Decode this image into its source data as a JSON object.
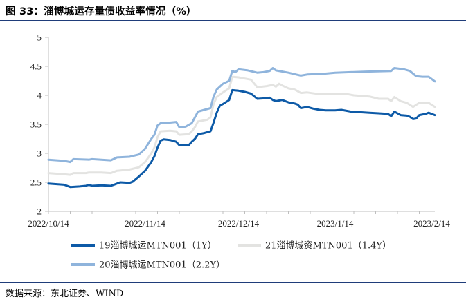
{
  "header": {
    "title": "图 33：淄博城运存量债收益率情况（%）"
  },
  "footer": {
    "source": "数据来源：东北证券、WIND"
  },
  "colors": {
    "series1": "#0d5aa7",
    "series2": "#e3e3e1",
    "series3": "#8fb4dc",
    "rule": "#1f3d7a",
    "axis": "#bfbfbf"
  },
  "chart_data": {
    "type": "line",
    "title": "",
    "xlabel": "",
    "ylabel": "",
    "ylim": [
      2,
      5
    ],
    "yticks": [
      "2",
      "2.5",
      "3",
      "3.5",
      "4",
      "4.5",
      "5"
    ],
    "xlim": [
      "2022-10-14",
      "2023-02-15"
    ],
    "xticks": [
      {
        "label": "2022/10/14",
        "date": "2022-10-14"
      },
      {
        "label": "2022/11/14",
        "date": "2022-11-14"
      },
      {
        "label": "2022/12/14",
        "date": "2022-12-14"
      },
      {
        "label": "2023/1/14",
        "date": "2023-01-14"
      },
      {
        "label": "2023/2/14",
        "date": "2023-02-14"
      }
    ],
    "grid": false,
    "legend": "bottom",
    "series": [
      {
        "name": "19淄博城运MTN001（1Y）",
        "color": "#0d5aa7",
        "points": [
          [
            "2022-10-14",
            2.48
          ],
          [
            "2022-10-19",
            2.46
          ],
          [
            "2022-10-21",
            2.42
          ],
          [
            "2022-10-24",
            2.43
          ],
          [
            "2022-10-26",
            2.44
          ],
          [
            "2022-10-27",
            2.46
          ],
          [
            "2022-10-28",
            2.44
          ],
          [
            "2022-10-31",
            2.45
          ],
          [
            "2022-11-03",
            2.44
          ],
          [
            "2022-11-04",
            2.46
          ],
          [
            "2022-11-06",
            2.5
          ],
          [
            "2022-11-09",
            2.49
          ],
          [
            "2022-11-10",
            2.51
          ],
          [
            "2022-11-12",
            2.6
          ],
          [
            "2022-11-14",
            2.7
          ],
          [
            "2022-11-16",
            2.85
          ],
          [
            "2022-11-17",
            2.95
          ],
          [
            "2022-11-18",
            3.1
          ],
          [
            "2022-11-19",
            3.22
          ],
          [
            "2022-11-20",
            3.24
          ],
          [
            "2022-11-22",
            3.23
          ],
          [
            "2022-11-24",
            3.2
          ],
          [
            "2022-11-25",
            3.14
          ],
          [
            "2022-11-28",
            3.14
          ],
          [
            "2022-11-29",
            3.2
          ],
          [
            "2022-11-30",
            3.25
          ],
          [
            "2022-12-01",
            3.33
          ],
          [
            "2022-12-03",
            3.35
          ],
          [
            "2022-12-05",
            3.38
          ],
          [
            "2022-12-06",
            3.53
          ],
          [
            "2022-12-07",
            3.7
          ],
          [
            "2022-12-08",
            3.82
          ],
          [
            "2022-12-09",
            3.85
          ],
          [
            "2022-12-11",
            3.92
          ],
          [
            "2022-12-12",
            4.09
          ],
          [
            "2022-12-14",
            4.08
          ],
          [
            "2022-12-16",
            4.06
          ],
          [
            "2022-12-18",
            4.03
          ],
          [
            "2022-12-20",
            3.94
          ],
          [
            "2022-12-23",
            3.95
          ],
          [
            "2022-12-24",
            3.96
          ],
          [
            "2022-12-25",
            3.92
          ],
          [
            "2022-12-26",
            3.9
          ],
          [
            "2022-12-28",
            3.92
          ],
          [
            "2022-12-30",
            3.88
          ],
          [
            "2023-01-01",
            3.86
          ],
          [
            "2023-01-02",
            3.84
          ],
          [
            "2023-01-03",
            3.78
          ],
          [
            "2023-01-05",
            3.8
          ],
          [
            "2023-01-07",
            3.77
          ],
          [
            "2023-01-09",
            3.75
          ],
          [
            "2023-01-11",
            3.74
          ],
          [
            "2023-01-14",
            3.74
          ],
          [
            "2023-01-16",
            3.75
          ],
          [
            "2023-01-19",
            3.72
          ],
          [
            "2023-01-22",
            3.71
          ],
          [
            "2023-01-25",
            3.7
          ],
          [
            "2023-01-28",
            3.69
          ],
          [
            "2023-01-31",
            3.68
          ],
          [
            "2023-02-01",
            3.64
          ],
          [
            "2023-02-02",
            3.72
          ],
          [
            "2023-02-04",
            3.66
          ],
          [
            "2023-02-06",
            3.65
          ],
          [
            "2023-02-07",
            3.63
          ],
          [
            "2023-02-08",
            3.59
          ],
          [
            "2023-02-09",
            3.6
          ],
          [
            "2023-02-10",
            3.66
          ],
          [
            "2023-02-12",
            3.68
          ],
          [
            "2023-02-13",
            3.7
          ],
          [
            "2023-02-15",
            3.66
          ]
        ]
      },
      {
        "name": "21淄博城资MTN001（1.4Y）",
        "color": "#e3e3e1",
        "points": [
          [
            "2022-10-14",
            2.66
          ],
          [
            "2022-10-19",
            2.64
          ],
          [
            "2022-10-21",
            2.63
          ],
          [
            "2022-10-22",
            2.66
          ],
          [
            "2022-10-26",
            2.66
          ],
          [
            "2022-10-27",
            2.67
          ],
          [
            "2022-10-31",
            2.67
          ],
          [
            "2022-11-03",
            2.66
          ],
          [
            "2022-11-05",
            2.7
          ],
          [
            "2022-11-09",
            2.72
          ],
          [
            "2022-11-12",
            2.76
          ],
          [
            "2022-11-14",
            2.85
          ],
          [
            "2022-11-16",
            3.0
          ],
          [
            "2022-11-17",
            3.1
          ],
          [
            "2022-11-18",
            3.28
          ],
          [
            "2022-11-19",
            3.38
          ],
          [
            "2022-11-22",
            3.39
          ],
          [
            "2022-11-24",
            3.38
          ],
          [
            "2022-11-25",
            3.32
          ],
          [
            "2022-11-28",
            3.33
          ],
          [
            "2022-11-29",
            3.38
          ],
          [
            "2022-11-30",
            3.45
          ],
          [
            "2022-12-01",
            3.55
          ],
          [
            "2022-12-04",
            3.58
          ],
          [
            "2022-12-05",
            3.62
          ],
          [
            "2022-12-06",
            3.85
          ],
          [
            "2022-12-07",
            3.97
          ],
          [
            "2022-12-09",
            4.05
          ],
          [
            "2022-12-11",
            4.12
          ],
          [
            "2022-12-12",
            4.32
          ],
          [
            "2022-12-14",
            4.31
          ],
          [
            "2022-12-18",
            4.27
          ],
          [
            "2022-12-20",
            4.14
          ],
          [
            "2022-12-23",
            4.16
          ],
          [
            "2022-12-25",
            4.18
          ],
          [
            "2022-12-26",
            4.15
          ],
          [
            "2022-12-27",
            4.2
          ],
          [
            "2022-12-28",
            4.17
          ],
          [
            "2022-12-30",
            4.12
          ],
          [
            "2023-01-01",
            4.1
          ],
          [
            "2023-01-03",
            4.04
          ],
          [
            "2023-01-05",
            4.05
          ],
          [
            "2023-01-09",
            4.02
          ],
          [
            "2023-01-14",
            4.02
          ],
          [
            "2023-01-18",
            4.02
          ],
          [
            "2023-01-20",
            4.0
          ],
          [
            "2023-01-25",
            3.98
          ],
          [
            "2023-01-28",
            3.94
          ],
          [
            "2023-01-31",
            3.94
          ],
          [
            "2023-02-01",
            3.9
          ],
          [
            "2023-02-02",
            3.97
          ],
          [
            "2023-02-04",
            3.9
          ],
          [
            "2023-02-06",
            3.87
          ],
          [
            "2023-02-08",
            3.8
          ],
          [
            "2023-02-10",
            3.87
          ],
          [
            "2023-02-13",
            3.87
          ],
          [
            "2023-02-15",
            3.8
          ]
        ]
      },
      {
        "name": "20淄博城运MTN001（2.2Y）",
        "color": "#8fb4dc",
        "points": [
          [
            "2022-10-14",
            2.89
          ],
          [
            "2022-10-19",
            2.87
          ],
          [
            "2022-10-21",
            2.85
          ],
          [
            "2022-10-22",
            2.9
          ],
          [
            "2022-10-27",
            2.89
          ],
          [
            "2022-10-28",
            2.9
          ],
          [
            "2022-10-31",
            2.89
          ],
          [
            "2022-11-03",
            2.88
          ],
          [
            "2022-11-05",
            2.93
          ],
          [
            "2022-11-09",
            2.94
          ],
          [
            "2022-11-12",
            2.98
          ],
          [
            "2022-11-14",
            3.08
          ],
          [
            "2022-11-16",
            3.25
          ],
          [
            "2022-11-17",
            3.32
          ],
          [
            "2022-11-18",
            3.48
          ],
          [
            "2022-11-19",
            3.52
          ],
          [
            "2022-11-22",
            3.53
          ],
          [
            "2022-11-24",
            3.54
          ],
          [
            "2022-11-25",
            3.45
          ],
          [
            "2022-11-27",
            3.46
          ],
          [
            "2022-11-29",
            3.52
          ],
          [
            "2022-11-30",
            3.62
          ],
          [
            "2022-12-01",
            3.72
          ],
          [
            "2022-12-03",
            3.75
          ],
          [
            "2022-12-05",
            3.78
          ],
          [
            "2022-12-06",
            3.98
          ],
          [
            "2022-12-07",
            4.1
          ],
          [
            "2022-12-09",
            4.2
          ],
          [
            "2022-12-11",
            4.25
          ],
          [
            "2022-12-12",
            4.42
          ],
          [
            "2022-12-13",
            4.4
          ],
          [
            "2022-12-14",
            4.45
          ],
          [
            "2022-12-17",
            4.43
          ],
          [
            "2022-12-20",
            4.39
          ],
          [
            "2022-12-22",
            4.4
          ],
          [
            "2022-12-24",
            4.42
          ],
          [
            "2022-12-25",
            4.47
          ],
          [
            "2022-12-26",
            4.43
          ],
          [
            "2022-12-30",
            4.39
          ],
          [
            "2023-01-03",
            4.34
          ],
          [
            "2023-01-05",
            4.36
          ],
          [
            "2023-01-10",
            4.37
          ],
          [
            "2023-01-14",
            4.39
          ],
          [
            "2023-01-19",
            4.4
          ],
          [
            "2023-01-24",
            4.41
          ],
          [
            "2023-02-01",
            4.42
          ],
          [
            "2023-02-02",
            4.47
          ],
          [
            "2023-02-05",
            4.45
          ],
          [
            "2023-02-07",
            4.42
          ],
          [
            "2023-02-09",
            4.33
          ],
          [
            "2023-02-11",
            4.32
          ],
          [
            "2023-02-13",
            4.32
          ],
          [
            "2023-02-15",
            4.24
          ]
        ]
      }
    ]
  }
}
